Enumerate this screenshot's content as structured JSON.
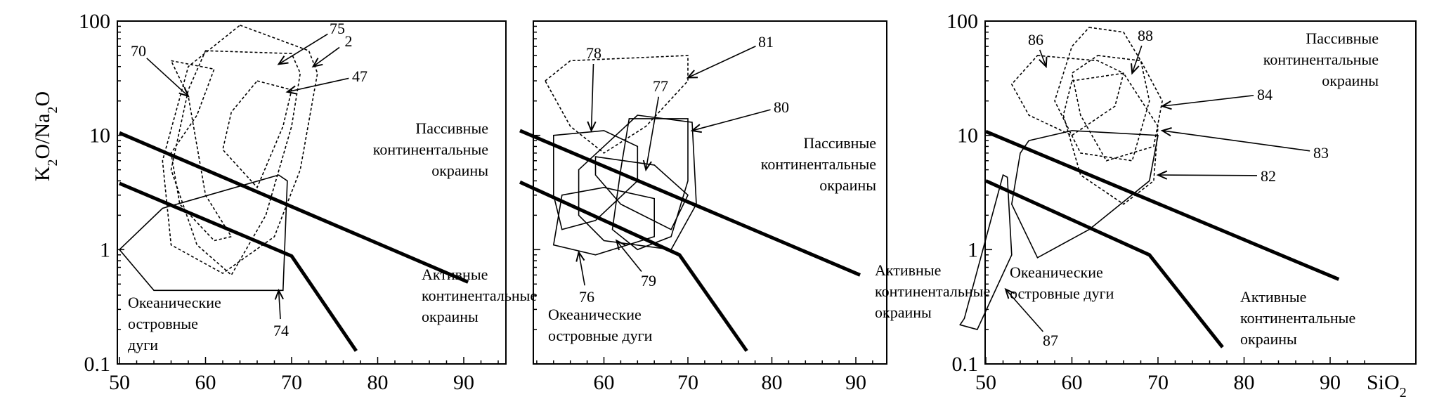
{
  "chart_data": [
    {
      "type": "scatter",
      "panel": "left",
      "x_ticks": [
        "50",
        "60",
        "70",
        "80",
        "90"
      ],
      "y_ticks": [
        "0.1",
        "1",
        "10",
        "100"
      ],
      "xlim": [
        50,
        95
      ],
      "ylim": [
        0.1,
        100
      ],
      "y_scale": "log",
      "ylabel": "K<sub>2</sub>O/Na<sub>2</sub>O",
      "boundaries": [
        {
          "name": "upper",
          "points": [
            [
              50,
              10.5
            ],
            [
              90.5,
              0.52
            ]
          ]
        },
        {
          "name": "lower",
          "points": [
            [
              50,
              3.8
            ],
            [
              70,
              0.88
            ],
            [
              77.5,
              0.13
            ]
          ]
        }
      ],
      "regions": [
        {
          "text": [
            "Пассивные",
            "континентальные",
            "окраины"
          ]
        },
        {
          "text": [
            "Активные",
            "континентальные",
            "окраины"
          ]
        },
        {
          "text": [
            "Океанические",
            "островные",
            "дуги"
          ]
        }
      ],
      "fields": [
        {
          "label": "70",
          "style": "dashed",
          "points": [
            [
              56,
              45
            ],
            [
              61,
              38
            ],
            [
              59,
              15
            ],
            [
              56,
              7
            ],
            [
              57,
              2.5
            ],
            [
              61,
              1.2
            ],
            [
              63,
              1.3
            ],
            [
              60,
              3
            ],
            [
              58,
              22
            ],
            [
              56,
              45
            ]
          ]
        },
        {
          "label": "75",
          "style": "dashed",
          "points": [
            [
              60,
              55
            ],
            [
              70,
              52
            ],
            [
              71,
              35
            ],
            [
              70,
              12
            ],
            [
              67,
              2
            ],
            [
              63,
              0.6
            ],
            [
              59,
              1.1
            ],
            [
              56,
              5
            ],
            [
              58,
              25
            ],
            [
              60,
              55
            ]
          ]
        },
        {
          "label": "2",
          "style": "dashed",
          "points": [
            [
              64,
              92
            ],
            [
              72,
              55
            ],
            [
              73,
              35
            ],
            [
              71,
              5
            ],
            [
              68,
              1.3
            ],
            [
              62,
              0.62
            ],
            [
              56,
              1.1
            ],
            [
              55,
              6
            ],
            [
              58,
              40
            ],
            [
              64,
              92
            ]
          ]
        },
        {
          "label": "47",
          "style": "dashed",
          "points": [
            [
              66,
              30
            ],
            [
              70,
              25
            ],
            [
              69,
              12
            ],
            [
              66,
              3.5
            ],
            [
              62,
              7.5
            ],
            [
              63,
              16
            ],
            [
              66,
              30
            ]
          ]
        },
        {
          "label": "74",
          "style": "solid",
          "points": [
            [
              50,
              1.0
            ],
            [
              55,
              2.3
            ],
            [
              68.5,
              4.5
            ],
            [
              69.5,
              4.0
            ],
            [
              69,
              0.44
            ],
            [
              54,
              0.44
            ],
            [
              50,
              1.0
            ]
          ]
        }
      ],
      "annotations": [
        {
          "label": "70",
          "target": [
            58,
            22
          ]
        },
        {
          "label": "75",
          "target": [
            68.5,
            42
          ]
        },
        {
          "label": "2",
          "target": [
            72.5,
            40
          ]
        },
        {
          "label": "47",
          "target": [
            69.5,
            24
          ]
        },
        {
          "label": "74",
          "target": [
            68.5,
            0.44
          ]
        }
      ]
    },
    {
      "type": "scatter",
      "panel": "middle",
      "x_ticks": [
        "60",
        "70",
        "80",
        "90"
      ],
      "xlim": [
        50,
        95
      ],
      "ylim": [
        0.1,
        100
      ],
      "y_scale": "log",
      "boundaries": [
        {
          "name": "upper",
          "points": [
            [
              50,
              11
            ],
            [
              90.5,
              0.6
            ]
          ]
        },
        {
          "name": "lower",
          "points": [
            [
              50,
              3.9
            ],
            [
              69,
              0.9
            ],
            [
              77,
              0.13
            ]
          ]
        }
      ],
      "regions": [
        {
          "text": [
            "Пассивные",
            "континентальные",
            "окраины"
          ]
        },
        {
          "text": [
            "Активные",
            "континентальные",
            "окраины"
          ]
        },
        {
          "text": [
            "Океанические",
            "островные дуги"
          ]
        }
      ],
      "fields": [
        {
          "label": "81",
          "style": "dashed",
          "points": [
            [
              53,
              30
            ],
            [
              56,
              45
            ],
            [
              70,
              50
            ],
            [
              70,
              30
            ],
            [
              65,
              12
            ],
            [
              60,
              7
            ],
            [
              56,
              12
            ],
            [
              53,
              30
            ]
          ]
        },
        {
          "label": "78",
          "style": "solid",
          "points": [
            [
              54,
              10
            ],
            [
              60,
              11
            ],
            [
              64,
              8
            ],
            [
              64,
              4
            ],
            [
              59,
              1.8
            ],
            [
              55,
              1.5
            ],
            [
              54,
              3
            ],
            [
              54,
              10
            ]
          ]
        },
        {
          "label": "77",
          "style": "solid",
          "points": [
            [
              63,
              14
            ],
            [
              70,
              14
            ],
            [
              70,
              4
            ],
            [
              68,
              1.3
            ],
            [
              64,
              1.0
            ],
            [
              61,
              1.5
            ],
            [
              62,
              5
            ],
            [
              63,
              14
            ]
          ]
        },
        {
          "label": "80",
          "style": "solid",
          "points": [
            [
              64,
              15
            ],
            [
              70.5,
              13
            ],
            [
              71,
              2.5
            ],
            [
              68,
              1.0
            ],
            [
              60,
              1.2
            ],
            [
              57,
              2
            ],
            [
              57,
              5
            ],
            [
              64,
              15
            ]
          ]
        },
        {
          "label": "76",
          "style": "solid",
          "points": [
            [
              55,
              3
            ],
            [
              60,
              3.5
            ],
            [
              66,
              2.8
            ],
            [
              66,
              1.3
            ],
            [
              59,
              0.9
            ],
            [
              54,
              1.1
            ],
            [
              55,
              3
            ]
          ]
        },
        {
          "label": "79",
          "style": "solid",
          "points": [
            [
              59,
              6.5
            ],
            [
              66,
              5.5
            ],
            [
              70,
              3
            ],
            [
              68,
              1.5
            ],
            [
              62,
              2.5
            ],
            [
              59,
              4.5
            ],
            [
              59,
              6.5
            ]
          ]
        }
      ],
      "annotations": [
        {
          "label": "81",
          "target": [
            70,
            32
          ]
        },
        {
          "label": "78",
          "target": [
            58.5,
            11
          ]
        },
        {
          "label": "77",
          "target": [
            65,
            5
          ]
        },
        {
          "label": "80",
          "target": [
            70.5,
            11
          ]
        },
        {
          "label": "76",
          "target": [
            57,
            0.95
          ]
        },
        {
          "label": "79",
          "target": [
            61.5,
            1.2
          ]
        }
      ]
    },
    {
      "type": "scatter",
      "panel": "right",
      "x_ticks": [
        "50",
        "60",
        "70",
        "80",
        "90"
      ],
      "y_ticks": [
        "0.1",
        "1",
        "10",
        "100"
      ],
      "xlim": [
        50,
        95
      ],
      "ylim": [
        0.1,
        100
      ],
      "y_scale": "log",
      "xlabel": "SiO<sub>2</sub>",
      "boundaries": [
        {
          "name": "upper",
          "points": [
            [
              50,
              10.8
            ],
            [
              91,
              0.55
            ]
          ]
        },
        {
          "name": "lower",
          "points": [
            [
              50,
              4.0
            ],
            [
              69,
              0.9
            ],
            [
              77.5,
              0.14
            ]
          ]
        }
      ],
      "regions": [
        {
          "text": [
            "Пассивные",
            "континентальные",
            "окраины"
          ]
        },
        {
          "text": [
            "Океанические",
            "островные дуги"
          ]
        },
        {
          "text": [
            "Активные",
            "континентальные",
            "окраины"
          ]
        }
      ],
      "fields": [
        {
          "label": "86",
          "style": "dashed",
          "points": [
            [
              56,
              50
            ],
            [
              63,
              45
            ],
            [
              66,
              35
            ],
            [
              65,
              18
            ],
            [
              60,
              10
            ],
            [
              55,
              15
            ],
            [
              53,
              28
            ],
            [
              56,
              50
            ]
          ]
        },
        {
          "label": "88",
          "style": "dashed",
          "points": [
            [
              62,
              88
            ],
            [
              66,
              80
            ],
            [
              68,
              45
            ],
            [
              69,
              20
            ],
            [
              67,
              6
            ],
            [
              61,
              7
            ],
            [
              58,
              20
            ],
            [
              60,
              60
            ],
            [
              62,
              88
            ]
          ]
        },
        {
          "label": "84",
          "style": "dashed",
          "points": [
            [
              63,
              50
            ],
            [
              68,
              45
            ],
            [
              70.5,
              20
            ],
            [
              69.5,
              8
            ],
            [
              64,
              6
            ],
            [
              61,
              15
            ],
            [
              60,
              35
            ],
            [
              63,
              50
            ]
          ]
        },
        {
          "label": "83",
          "style": "dashed",
          "points": [
            [
              60,
              30
            ],
            [
              66,
              35
            ],
            [
              70,
              12
            ],
            [
              69.5,
              4
            ],
            [
              66,
              2.5
            ],
            [
              61,
              4.5
            ],
            [
              59,
              15
            ],
            [
              60,
              30
            ]
          ]
        },
        {
          "label": "82",
          "style": "solid",
          "points": [
            [
              55,
              9
            ],
            [
              60,
              11
            ],
            [
              70,
              10
            ],
            [
              69,
              4
            ],
            [
              62,
              1.5
            ],
            [
              56,
              0.85
            ],
            [
              53,
              2.5
            ],
            [
              54,
              7
            ],
            [
              55,
              9
            ]
          ]
        },
        {
          "label": "87",
          "style": "solid",
          "points": [
            [
              47,
              0.22
            ],
            [
              49,
              0.2
            ],
            [
              53,
              0.9
            ],
            [
              52.5,
              4.3
            ],
            [
              52,
              4.5
            ],
            [
              47.5,
              0.25
            ],
            [
              47,
              0.22
            ]
          ]
        }
      ],
      "annotations": [
        {
          "label": "86",
          "target": [
            57,
            40
          ]
        },
        {
          "label": "88",
          "target": [
            67,
            35
          ]
        },
        {
          "label": "84",
          "target": [
            70.5,
            18
          ]
        },
        {
          "label": "83",
          "target": [
            70.5,
            11
          ]
        },
        {
          "label": "82",
          "target": [
            70,
            4.5
          ]
        },
        {
          "label": "87",
          "target": [
            52.3,
            0.45
          ]
        }
      ]
    }
  ]
}
